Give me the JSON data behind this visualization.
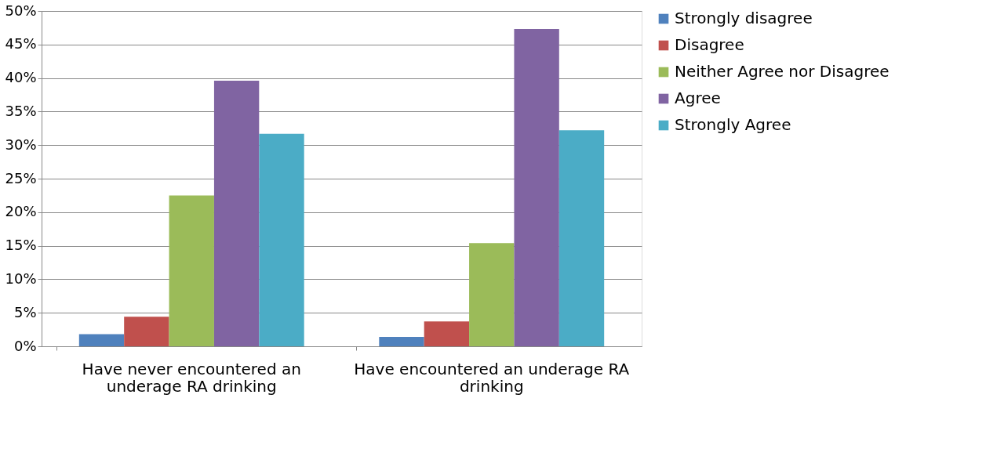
{
  "chart_data": {
    "type": "bar",
    "categories": [
      "Have never encountered an underage RA drinking",
      "Have encountered an underage RA drinking"
    ],
    "series": [
      {
        "name": "Strongly disagree",
        "color": "#4f81bd",
        "values": [
          1.8,
          1.4
        ]
      },
      {
        "name": "Disagree",
        "color": "#c0504d",
        "values": [
          4.4,
          3.7
        ]
      },
      {
        "name": "Neither Agree nor Disagree",
        "color": "#9bbb59",
        "values": [
          22.5,
          15.4
        ]
      },
      {
        "name": "Agree",
        "color": "#8064a2",
        "values": [
          39.6,
          47.3
        ]
      },
      {
        "name": "Strongly Agree",
        "color": "#4bacc6",
        "values": [
          31.7,
          32.2
        ]
      }
    ],
    "ylim": [
      0,
      50
    ],
    "yticks": [
      {
        "value": 0,
        "label": "0%"
      },
      {
        "value": 5,
        "label": "5%"
      },
      {
        "value": 10,
        "label": "10%"
      },
      {
        "value": 15,
        "label": "15%"
      },
      {
        "value": 20,
        "label": "20%"
      },
      {
        "value": 25,
        "label": "25%"
      },
      {
        "value": 30,
        "label": "30%"
      },
      {
        "value": 35,
        "label": "35%"
      },
      {
        "value": 40,
        "label": "40%"
      },
      {
        "value": 45,
        "label": "45%"
      },
      {
        "value": 50,
        "label": "50%"
      }
    ],
    "grid": "y",
    "legend": "right"
  }
}
